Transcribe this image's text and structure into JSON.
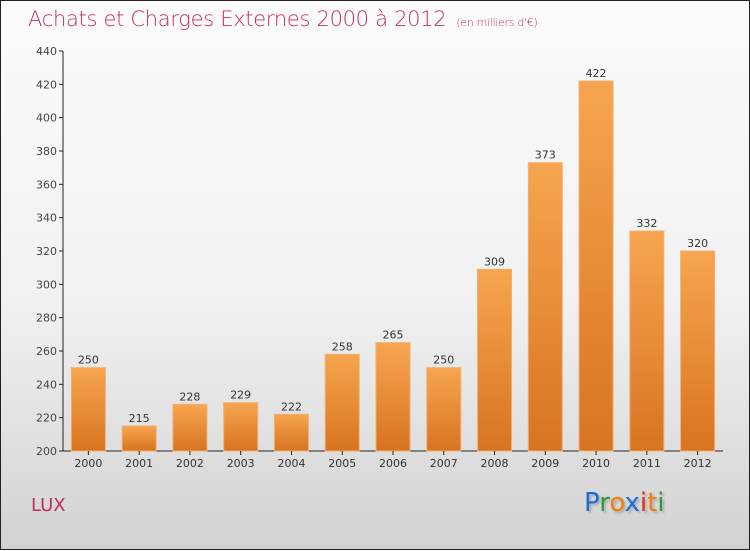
{
  "title": "Achats et Charges Externes 2000 à 2012",
  "subtitle": "(en milliers d'€)",
  "region": "LUX",
  "logo": {
    "text": "Proxiti",
    "letters": [
      "P",
      "r",
      "o",
      "x",
      "i",
      "t",
      "i"
    ],
    "colors": [
      "#1a6fcf",
      "#2e9a3a",
      "#f07f10",
      "#1a6fcf",
      "#e03020",
      "#f07f10",
      "#2e9a3a"
    ]
  },
  "colors": {
    "bar_top": "#f7a550",
    "bar_bottom": "#d87420",
    "title": "#c0305a"
  },
  "chart_data": {
    "type": "bar",
    "title": "Achats et Charges Externes 2000 à 2012",
    "xlabel": "",
    "ylabel": "",
    "categories": [
      "2000",
      "2001",
      "2002",
      "2003",
      "2004",
      "2005",
      "2006",
      "2007",
      "2008",
      "2009",
      "2010",
      "2011",
      "2012"
    ],
    "values": [
      250,
      215,
      228,
      229,
      222,
      258,
      265,
      250,
      309,
      373,
      422,
      332,
      320
    ],
    "ylim": [
      200,
      440
    ],
    "yticks": [
      200,
      220,
      240,
      260,
      280,
      300,
      320,
      340,
      360,
      380,
      400,
      420,
      440
    ],
    "grid": false
  }
}
